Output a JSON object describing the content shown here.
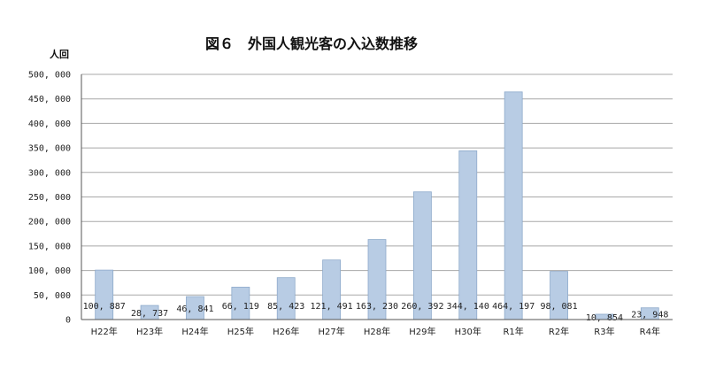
{
  "chart_data": {
    "type": "bar",
    "title": "図６　外国人観光客の入込数推移",
    "ylabel": "人回",
    "xlabel": "",
    "categories": [
      "H22年",
      "H23年",
      "H24年",
      "H25年",
      "H26年",
      "H27年",
      "H28年",
      "H29年",
      "H30年",
      "R1年",
      "R2年",
      "R3年",
      "R4年"
    ],
    "values": [
      100887,
      28737,
      46841,
      66119,
      85423,
      121491,
      163230,
      260392,
      344140,
      464197,
      98081,
      10854,
      23948
    ],
    "data_labels": [
      "100, 887",
      "28, 737",
      "46, 841",
      "66, 119",
      "85, 423",
      "121, 491",
      "163, 230",
      "260, 392",
      "344, 140",
      "464, 197",
      "98, 081",
      "10, 854",
      "23, 948"
    ],
    "yticks": [
      0,
      50000,
      100000,
      150000,
      200000,
      250000,
      300000,
      350000,
      400000,
      450000,
      500000
    ],
    "ytick_labels": [
      "0",
      "50, 000",
      "100, 000",
      "150, 000",
      "200, 000",
      "250, 000",
      "300, 000",
      "350, 000",
      "400, 000",
      "450, 000",
      "500, 000"
    ],
    "ylim": [
      0,
      500000
    ],
    "grid": true,
    "legend": "none",
    "bar_color": "#b8cce4",
    "bar_edge_color": "#8eaacb"
  }
}
